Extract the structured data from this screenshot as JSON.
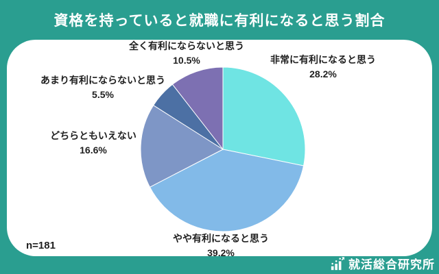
{
  "title": "資格を持っていると就職に有利になると思う割合",
  "annotations": {
    "sample_size": "n=181"
  },
  "footer": {
    "logo_text": "就活総合研究所",
    "logo_icon": "bar-chart-growth-icon"
  },
  "colors": {
    "background": "#2A9E90",
    "card": "#FFFFFF",
    "title_text": "#FFFFFF",
    "label_text": "#1F1F1F"
  },
  "chart_data": {
    "type": "pie",
    "title": "資格を持っていると就職に有利になると思う割合",
    "sample_size": 181,
    "start_angle_deg": 0,
    "direction": "clockwise",
    "legend_position": "labels-around-pie",
    "slices": [
      {
        "label": "非常に有利になると思う",
        "value": 28.2,
        "pct_label": "28.2%",
        "color": "#6FE4E3"
      },
      {
        "label": "やや有利になると思う",
        "value": 39.2,
        "pct_label": "39.2%",
        "color": "#82BAE8"
      },
      {
        "label": "どちらともいえない",
        "value": 16.6,
        "pct_label": "16.6%",
        "color": "#7E96C6"
      },
      {
        "label": "あまり有利にならないと思う",
        "value": 5.5,
        "pct_label": "5.5%",
        "color": "#4C70A4"
      },
      {
        "label": "全く有利にならないと思う",
        "value": 10.5,
        "pct_label": "10.5%",
        "color": "#7D70B2"
      }
    ]
  }
}
